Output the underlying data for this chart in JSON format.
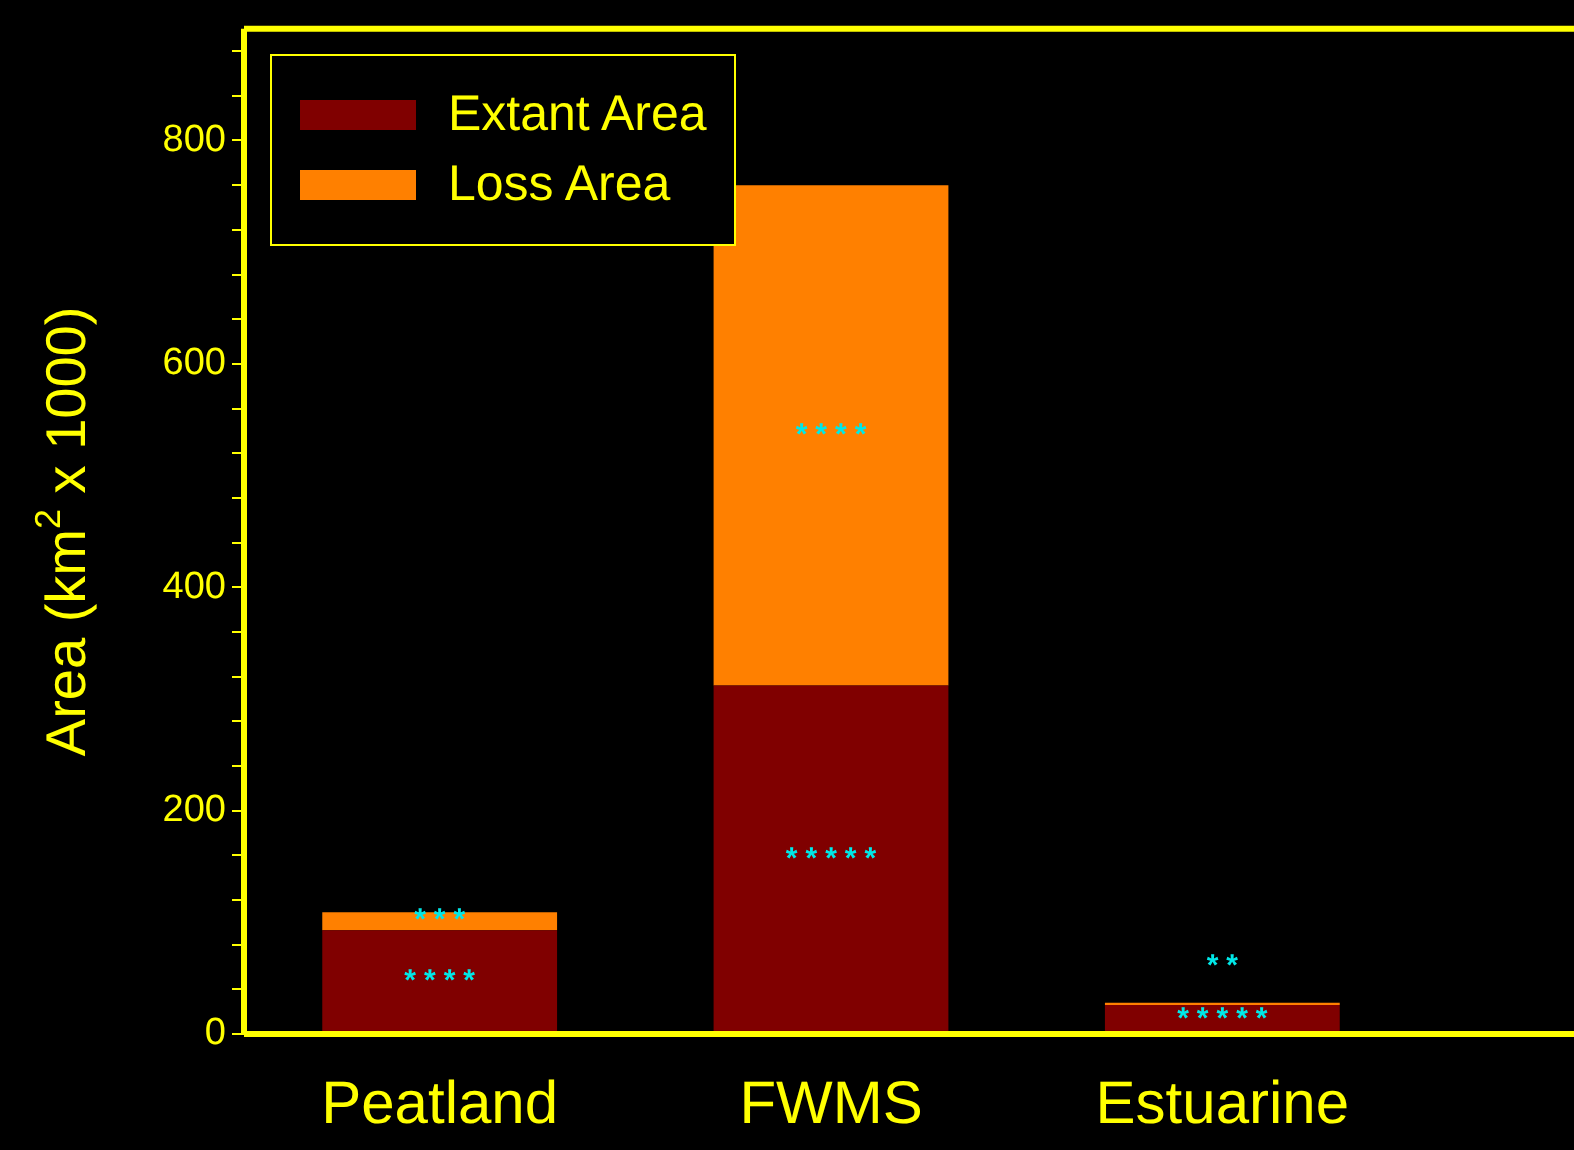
{
  "chart_data": {
    "type": "bar",
    "stacked": true,
    "ylabel": "Area (km$^{2}$ x 1000)",
    "categories": [
      "Peatland",
      "FWMS",
      "Estuarine"
    ],
    "series": [
      {
        "name": "Extant Area",
        "color": "#800000",
        "values": [
          93,
          312,
          26
        ]
      },
      {
        "name": "Loss Area",
        "color": "#ff8000",
        "values": [
          16,
          448,
          2
        ]
      }
    ],
    "ylim": [
      0,
      900
    ],
    "yticks": [
      0,
      {
        "value": 40,
        "label": null
      },
      {
        "value": 80,
        "label": null
      },
      {
        "value": 120,
        "label": null
      },
      {
        "value": 160,
        "label": null
      },
      200,
      {
        "value": 240,
        "label": null
      },
      {
        "value": 280,
        "label": null
      },
      {
        "value": 320,
        "label": null
      },
      {
        "value": 360,
        "label": null
      },
      400,
      {
        "value": 440,
        "label": null
      },
      {
        "value": 480,
        "label": null
      },
      {
        "value": 520,
        "label": null
      },
      {
        "value": 560,
        "label": null
      },
      600,
      {
        "value": 640,
        "label": null
      },
      {
        "value": 680,
        "label": null
      },
      {
        "value": 720,
        "label": null
      },
      {
        "value": 760,
        "label": null
      },
      800,
      {
        "value": 840,
        "label": null
      },
      {
        "value": 880,
        "label": null
      }
    ],
    "grid": false,
    "legend": "top left",
    "annotations": [
      "****",
      "***",
      "*****",
      "****",
      "*****",
      "**"
    ]
  }
}
